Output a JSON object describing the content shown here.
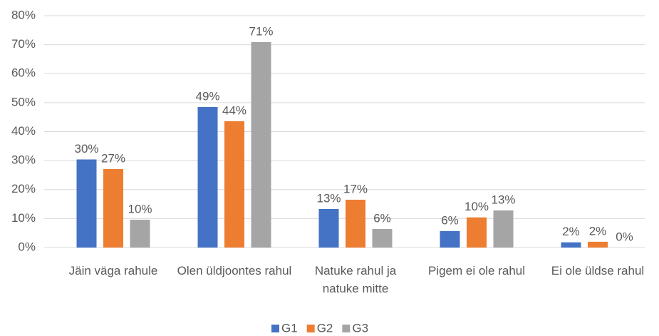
{
  "chart_data": {
    "type": "bar",
    "categories": [
      "Jäin väga rahule",
      "Olen üldjoontes rahul",
      "Natuke rahul ja natuke mitte",
      "Pigem ei ole rahul",
      "Ei ole üldse rahul"
    ],
    "series": [
      {
        "name": "G1",
        "color": "#4472c4",
        "values": [
          30.4,
          48.5,
          13.3,
          5.7,
          1.8
        ],
        "value_labels": [
          "30%",
          "49%",
          "13%",
          "6%",
          "2%"
        ]
      },
      {
        "name": "G2",
        "color": "#ed7d31",
        "values": [
          27.1,
          43.6,
          16.5,
          10.4,
          2.0
        ],
        "value_labels": [
          "27%",
          "44%",
          "17%",
          "10%",
          "2%"
        ]
      },
      {
        "name": "G3",
        "color": "#a5a5a5",
        "values": [
          9.6,
          70.9,
          6.4,
          12.8,
          0
        ],
        "value_labels": [
          "10%",
          "71%",
          "6%",
          "13%",
          "0%"
        ]
      }
    ],
    "ylim": [
      0,
      80
    ],
    "yticks": [
      {
        "value": 0,
        "label": "0%"
      },
      {
        "value": 10,
        "label": "10%"
      },
      {
        "value": 20,
        "label": "20%"
      },
      {
        "value": 30,
        "label": "30%"
      },
      {
        "value": 40,
        "label": "40%"
      },
      {
        "value": 50,
        "label": "50%"
      },
      {
        "value": 60,
        "label": "60%"
      },
      {
        "value": 70,
        "label": "70%"
      },
      {
        "value": 80,
        "label": "80%"
      }
    ],
    "grid": true,
    "legend": "bottom"
  }
}
